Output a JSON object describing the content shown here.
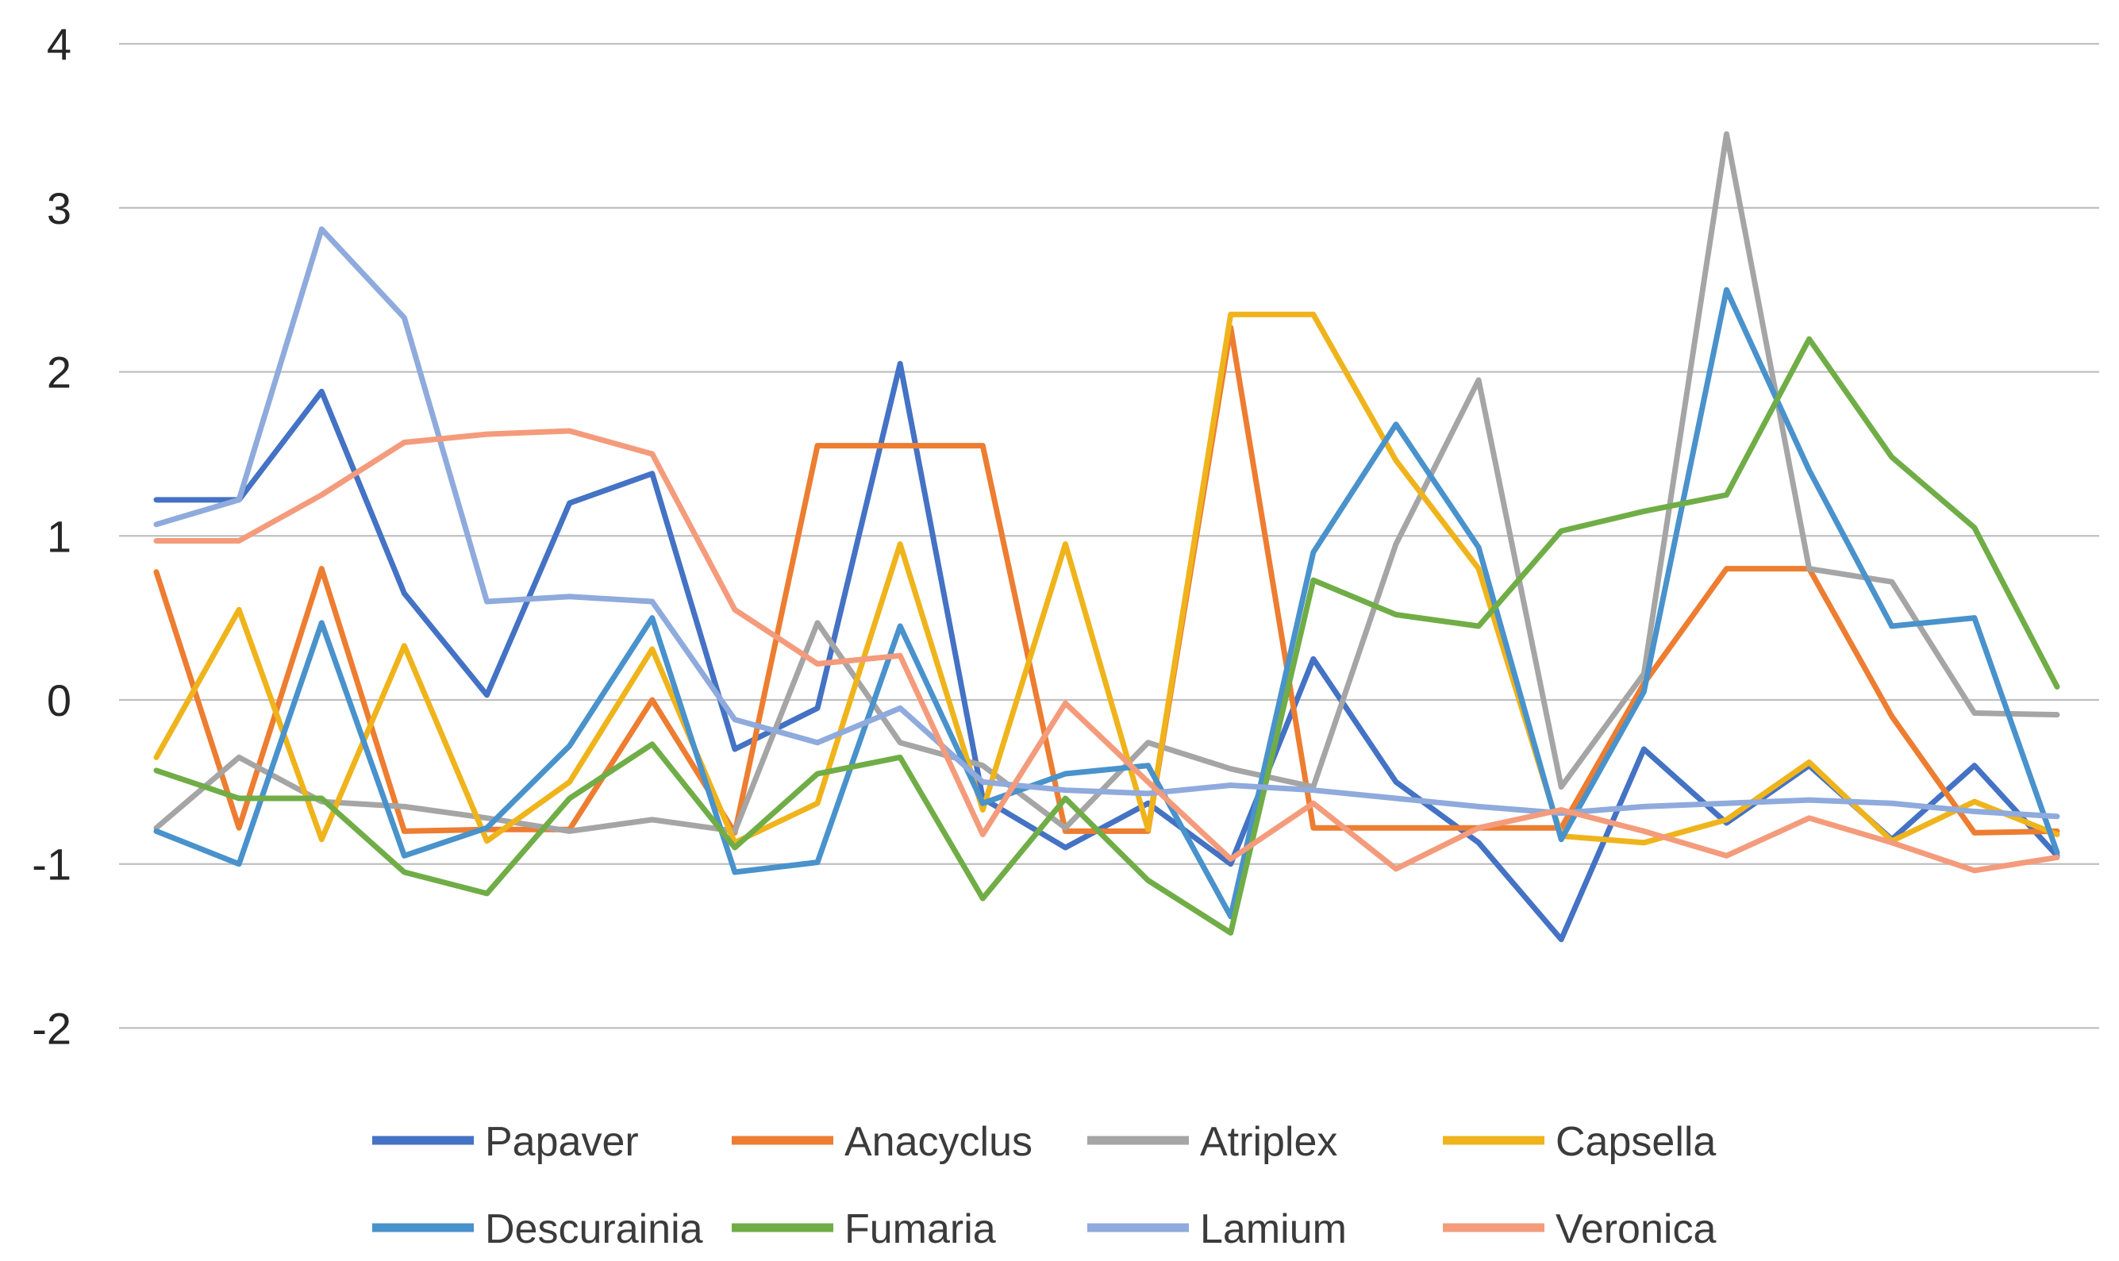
{
  "chart_data": {
    "type": "line",
    "title": "",
    "xlabel": "",
    "ylabel": "",
    "x_point_count": 24,
    "x_tick_labels_visible": false,
    "grid": true,
    "legend_position": "bottom-two-rows",
    "background_color": "#ffffff",
    "gridline_color": "#bfbfbf",
    "axis_label_color": "#262626",
    "y_axis": {
      "min": -2,
      "max": 4,
      "tick_labels": [
        "4",
        "3",
        "2",
        "1",
        "0",
        "-1",
        "-2"
      ]
    },
    "series": [
      {
        "name": "Papaver",
        "color": "#4472C4",
        "values": [
          1.22,
          1.22,
          1.88,
          0.65,
          0.03,
          1.2,
          1.38,
          -0.3,
          -0.05,
          2.05,
          -0.6,
          -0.9,
          -0.63,
          -1.0,
          0.25,
          -0.5,
          -0.87,
          -1.46,
          -0.3,
          -0.75,
          -0.4,
          -0.85,
          -0.4,
          -0.95
        ]
      },
      {
        "name": "Anacyclus",
        "color": "#ED7D31",
        "values": [
          0.78,
          -0.78,
          0.8,
          -0.8,
          -0.79,
          -0.79,
          0.0,
          -0.81,
          1.55,
          1.55,
          1.55,
          -0.8,
          -0.8,
          2.27,
          -0.78,
          -0.78,
          -0.78,
          -0.78,
          0.1,
          0.8,
          0.8,
          -0.1,
          -0.81,
          -0.8
        ]
      },
      {
        "name": "Atriplex",
        "color": "#A5A5A5",
        "values": [
          -0.78,
          -0.35,
          -0.62,
          -0.65,
          -0.72,
          -0.8,
          -0.73,
          -0.8,
          0.47,
          -0.26,
          -0.4,
          -0.78,
          -0.26,
          -0.42,
          -0.53,
          0.95,
          1.95,
          -0.53,
          0.16,
          3.45,
          0.8,
          0.72,
          -0.08,
          -0.09
        ]
      },
      {
        "name": "Capsella",
        "color": "#EFB41C",
        "values": [
          -0.35,
          0.55,
          -0.85,
          0.33,
          -0.86,
          -0.5,
          0.31,
          -0.87,
          -0.63,
          0.95,
          -0.67,
          0.95,
          -0.79,
          2.35,
          2.35,
          1.46,
          0.8,
          -0.83,
          -0.87,
          -0.73,
          -0.38,
          -0.86,
          -0.62,
          -0.82
        ]
      },
      {
        "name": "Descurainia",
        "color": "#4992CC",
        "values": [
          -0.8,
          -1.0,
          0.47,
          -0.95,
          -0.78,
          -0.28,
          0.5,
          -1.05,
          -0.99,
          0.45,
          -0.63,
          -0.45,
          -0.4,
          -1.32,
          0.9,
          1.68,
          0.93,
          -0.85,
          0.05,
          2.5,
          1.4,
          0.45,
          0.5,
          -0.93
        ]
      },
      {
        "name": "Fumaria",
        "color": "#70AD47",
        "values": [
          -0.43,
          -0.6,
          -0.6,
          -1.05,
          -1.18,
          -0.6,
          -0.27,
          -0.9,
          -0.45,
          -0.35,
          -1.21,
          -0.6,
          -1.1,
          -1.42,
          0.73,
          0.52,
          0.45,
          1.03,
          1.15,
          1.25,
          2.2,
          1.48,
          1.05,
          0.08
        ]
      },
      {
        "name": "Lamium",
        "color": "#8FAADC",
        "values": [
          1.07,
          1.22,
          2.87,
          2.33,
          0.6,
          0.63,
          0.6,
          -0.12,
          -0.26,
          -0.05,
          -0.5,
          -0.55,
          -0.57,
          -0.52,
          -0.55,
          -0.6,
          -0.65,
          -0.69,
          -0.65,
          -0.63,
          -0.61,
          -0.63,
          -0.68,
          -0.71
        ]
      },
      {
        "name": "Veronica",
        "color": "#F49B7C",
        "values": [
          0.97,
          0.97,
          1.25,
          1.57,
          1.62,
          1.64,
          1.5,
          0.55,
          0.22,
          0.27,
          -0.82,
          -0.02,
          -0.5,
          -0.97,
          -0.63,
          -1.03,
          -0.78,
          -0.67,
          -0.8,
          -0.95,
          -0.72,
          -0.87,
          -1.04,
          -0.96
        ]
      }
    ],
    "legend_entries": [
      "Papaver",
      "Anacyclus",
      "Atriplex",
      "Capsella",
      "Descurainia",
      "Fumaria",
      "Lamium",
      "Veronica"
    ]
  }
}
